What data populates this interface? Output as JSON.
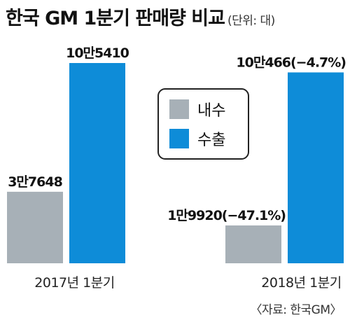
{
  "header": {
    "title": "한국 GM 1분기 판매량 비교",
    "unit": "(단위: 대)"
  },
  "source": "〈자료: 한국GM〉",
  "colors": {
    "domestic": "#A7B0B7",
    "export": "#0E8CD8"
  },
  "chart_data": {
    "type": "bar",
    "categories": [
      "2017년 1분기",
      "2018년 1분기"
    ],
    "series": [
      {
        "name": "내수",
        "values": [
          37648,
          19920
        ],
        "labels": [
          "3만7648",
          "1만9920(−47.1%)"
        ]
      },
      {
        "name": "수출",
        "values": [
          105410,
          100466
        ],
        "labels": [
          "10만5410",
          "10만466(−4.7%)"
        ]
      }
    ],
    "title": "한국 GM 1분기 판매량 비교",
    "unit": "대",
    "legend_position": "center"
  }
}
